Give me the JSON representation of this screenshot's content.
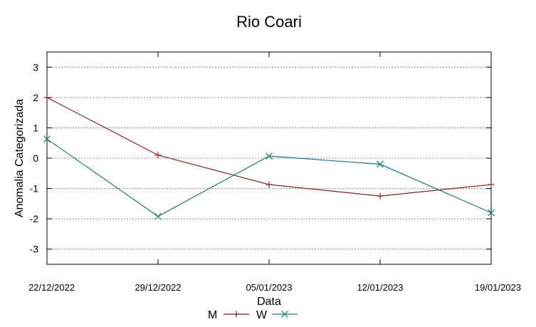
{
  "chart_data": {
    "type": "line",
    "title": "Rio Coari",
    "xlabel": "Data",
    "ylabel": "Anomalia Categorizada",
    "categories": [
      "22/12/2022",
      "29/12/2022",
      "05/01/2023",
      "12/01/2023",
      "19/01/2023"
    ],
    "ylim": [
      -3.5,
      3.5
    ],
    "yticks": [
      3,
      2,
      1,
      0,
      -1,
      -2,
      -3
    ],
    "ytick_labels": [
      "3",
      "2",
      "1",
      "0",
      "-1",
      "-2",
      "-3"
    ],
    "grid": true,
    "legend_position": "bottom-center",
    "series": [
      {
        "name": "M",
        "color": "#9b1b1b",
        "marker": "plus",
        "values": [
          2.0,
          0.1,
          -0.87,
          -1.25,
          -0.87
        ]
      },
      {
        "name": "W",
        "color": "#127f7f",
        "marker": "x",
        "values": [
          0.63,
          -1.92,
          0.07,
          -0.2,
          -1.8
        ]
      }
    ]
  }
}
